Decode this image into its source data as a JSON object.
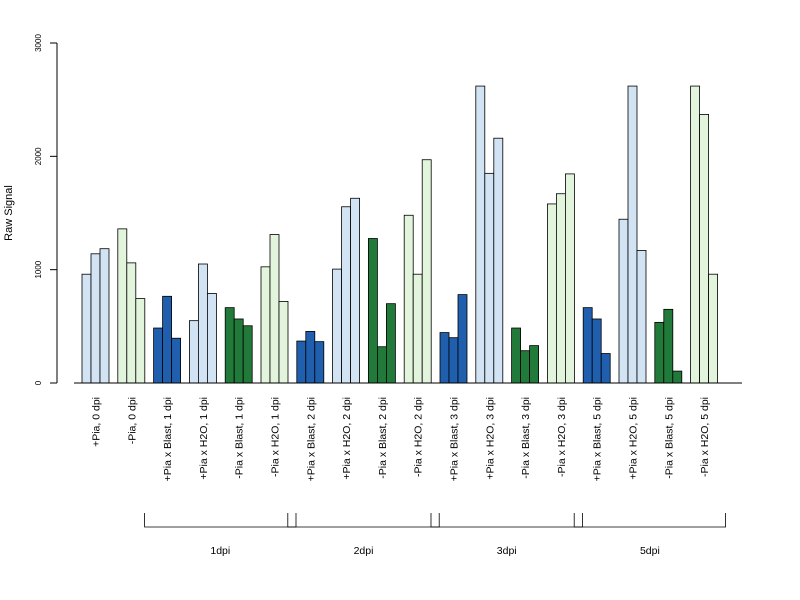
{
  "chart_data": {
    "type": "bar",
    "title": "",
    "xlabel": "",
    "ylabel": "Raw Signal",
    "ylim": [
      0,
      3000
    ],
    "yticks": [
      0,
      1000,
      2000,
      3000
    ],
    "ytick_labels": [
      "0",
      "1000",
      "2000",
      "3000"
    ],
    "grid": false,
    "categories": [
      "+Pia, 0 dpi",
      "-Pia, 0 dpi",
      "+Pia x Blast, 1 dpi",
      "+Pia x H2O, 1 dpi",
      "-Pia x Blast, 1 dpi",
      "-Pia x H2O, 1 dpi",
      "+Pia x Blast, 2 dpi",
      "+Pia x H2O, 2 dpi",
      "-Pia x Blast, 2 dpi",
      "-Pia x H2O, 2 dpi",
      "+Pia x Blast, 3 dpi",
      "+Pia x H2O, 3 dpi",
      "-Pia x Blast, 3 dpi",
      "-Pia x H2O, 3 dpi",
      "+Pia x Blast, 5 dpi",
      "+Pia x H2O, 5 dpi",
      "-Pia x Blast, 5 dpi",
      "-Pia x H2O, 5 dpi"
    ],
    "values": [
      [
        960,
        1140,
        1185
      ],
      [
        1360,
        1060,
        745
      ],
      [
        485,
        765,
        395
      ],
      [
        550,
        1050,
        790
      ],
      [
        665,
        565,
        505
      ],
      [
        1025,
        1310,
        720
      ],
      [
        370,
        455,
        365
      ],
      [
        1005,
        1555,
        1630
      ],
      [
        1275,
        320,
        700
      ],
      [
        1480,
        960,
        1970
      ],
      [
        445,
        400,
        780
      ],
      [
        2620,
        1850,
        2160
      ],
      [
        485,
        285,
        330
      ],
      [
        1580,
        1670,
        1845
      ],
      [
        665,
        565,
        260
      ],
      [
        1445,
        2620,
        1170
      ],
      [
        535,
        650,
        105
      ],
      [
        2620,
        2370,
        960
      ]
    ],
    "colors": {
      "plus_h2o": "#d2e3f3",
      "minus_h2o": "#e2f4dc",
      "plus_blast": "#1f5fad",
      "minus_blast": "#217a39"
    },
    "category_colors": [
      "#d2e3f3",
      "#e2f4dc",
      "#1f5fad",
      "#d2e3f3",
      "#217a39",
      "#e2f4dc",
      "#1f5fad",
      "#d2e3f3",
      "#217a39",
      "#e2f4dc",
      "#1f5fad",
      "#d2e3f3",
      "#217a39",
      "#e2f4dc",
      "#1f5fad",
      "#d2e3f3",
      "#217a39",
      "#e2f4dc"
    ],
    "groups": [
      {
        "label": "1dpi",
        "from": 2,
        "to": 5
      },
      {
        "label": "2dpi",
        "from": 6,
        "to": 9
      },
      {
        "label": "3dpi",
        "from": 10,
        "to": 13
      },
      {
        "label": "5dpi",
        "from": 14,
        "to": 17
      }
    ]
  }
}
